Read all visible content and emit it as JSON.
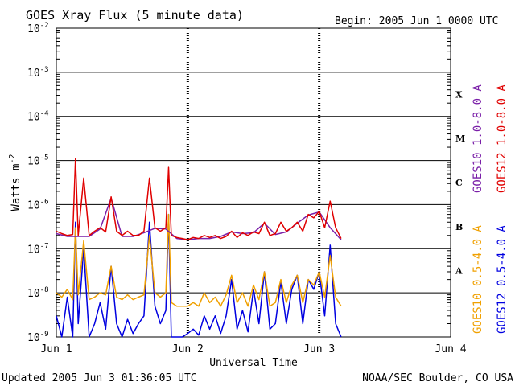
{
  "header": {
    "title": "GOES Xray Flux (5 minute data)",
    "begin": "Begin:  2005 Jun 1 0000 UTC"
  },
  "footer": {
    "updated": "Updated 2005 Jun  3 01:36:05 UTC",
    "source": "NOAA/SEC Boulder, CO USA"
  },
  "chart_data": {
    "type": "line",
    "title": "GOES Xray Flux (5 minute data)",
    "xlabel": "Universal Time",
    "ylabel": "Watts m",
    "ylabel_superscript": "-2",
    "y_scale": "log",
    "ylim": [
      1e-09,
      0.01
    ],
    "xlim": [
      "2005-06-01",
      "2005-06-04"
    ],
    "x_ticks": [
      "Jun 1",
      "Jun 2",
      "Jun 3",
      "Jun 4"
    ],
    "y_ticks": [
      {
        "base": "10",
        "exp": "-2"
      },
      {
        "base": "10",
        "exp": "-3"
      },
      {
        "base": "10",
        "exp": "-4"
      },
      {
        "base": "10",
        "exp": "-5"
      },
      {
        "base": "10",
        "exp": "-6"
      },
      {
        "base": "10",
        "exp": "-7"
      },
      {
        "base": "10",
        "exp": "-8"
      },
      {
        "base": "10",
        "exp": "-9"
      }
    ],
    "flare_classes": [
      {
        "label": "X",
        "flux": 0.0001
      },
      {
        "label": "M",
        "flux": 1e-05
      },
      {
        "label": "C",
        "flux": 1e-06
      },
      {
        "label": "B",
        "flux": 1e-07
      },
      {
        "label": "A",
        "flux": 1e-08
      }
    ],
    "grid": true,
    "legend": [
      {
        "name": "GOES10 1.0-8.0 A",
        "color": "#7a1fa8"
      },
      {
        "name": "GOES12 1.0-8.0 A",
        "color": "#e00000"
      },
      {
        "name": "GOES10 0.5-4.0 A",
        "color": "#f0a000"
      },
      {
        "name": "GOES12 0.5-4.0 A",
        "color": "#0000e0"
      }
    ],
    "series": [
      {
        "name": "GOES12 1.0-8.0 A",
        "color": "#e00000",
        "x_hours": [
          0,
          1,
          2,
          3,
          3.5,
          4,
          5,
          6,
          7,
          8,
          9,
          10,
          11,
          12,
          13,
          14,
          15,
          16,
          17,
          18,
          19,
          20,
          20.5,
          21,
          22,
          23,
          24,
          25,
          26,
          27,
          28,
          29,
          30,
          31,
          32,
          33,
          34,
          35,
          36,
          37,
          38,
          39,
          40,
          41,
          42,
          43,
          44,
          45,
          46,
          47,
          48,
          49,
          50,
          51,
          52
        ],
        "values": [
          2.5e-07,
          2.2e-07,
          2e-07,
          2.1e-07,
          1.1e-05,
          2e-07,
          4e-06,
          2e-07,
          2.5e-07,
          3e-07,
          2.4e-07,
          1.5e-06,
          2.5e-07,
          2e-07,
          2.5e-07,
          2e-07,
          2e-07,
          2.5e-07,
          4e-06,
          3e-07,
          2.5e-07,
          3e-07,
          7e-06,
          2e-07,
          1.8e-07,
          1.7e-07,
          1.6e-07,
          1.8e-07,
          1.7e-07,
          2e-07,
          1.8e-07,
          2e-07,
          1.7e-07,
          1.9e-07,
          2.5e-07,
          1.8e-07,
          2.3e-07,
          2e-07,
          2.4e-07,
          2.2e-07,
          4e-07,
          2e-07,
          2.2e-07,
          4e-07,
          2.5e-07,
          3e-07,
          4e-07,
          2.5e-07,
          6e-07,
          5e-07,
          7e-07,
          3e-07,
          1.2e-06,
          3e-07,
          1.7e-07
        ]
      },
      {
        "name": "GOES10 1.0-8.0 A",
        "color": "#7a1fa8",
        "x_hours": [
          0,
          2,
          4,
          6,
          8,
          10,
          12,
          14,
          16,
          18,
          20,
          22,
          24,
          26,
          28,
          30,
          32,
          34,
          36,
          38,
          40,
          42,
          44,
          46,
          48,
          50,
          52
        ],
        "values": [
          2.2e-07,
          1.9e-07,
          1.9e-07,
          1.9e-07,
          2.8e-07,
          1.4e-06,
          1.9e-07,
          1.9e-07,
          2.3e-07,
          2.9e-07,
          2.8e-07,
          1.7e-07,
          1.6e-07,
          1.7e-07,
          1.7e-07,
          1.9e-07,
          2.4e-07,
          2.2e-07,
          2.3e-07,
          3.8e-07,
          2.1e-07,
          2.4e-07,
          3.8e-07,
          5.8e-07,
          6.8e-07,
          3e-07,
          1.6e-07
        ]
      },
      {
        "name": "GOES10 0.5-4.0 A",
        "color": "#f0a000",
        "x_hours": [
          0,
          1,
          2,
          3,
          3.5,
          4,
          5,
          6,
          7,
          8,
          9,
          10,
          11,
          12,
          13,
          14,
          15,
          16,
          17,
          18,
          19,
          20,
          20.5,
          21,
          22,
          23,
          24,
          25,
          26,
          27,
          28,
          29,
          30,
          31,
          32,
          33,
          34,
          35,
          36,
          37,
          38,
          39,
          40,
          41,
          42,
          43,
          44,
          45,
          46,
          47,
          48,
          49,
          50,
          51,
          52
        ],
        "values": [
          1e-08,
          8e-09,
          1.2e-08,
          7e-09,
          3e-07,
          9e-09,
          1.5e-07,
          7e-09,
          8e-09,
          1e-08,
          9e-09,
          4e-08,
          8e-09,
          7e-09,
          9e-09,
          7e-09,
          8e-09,
          9e-09,
          2e-07,
          1e-08,
          8e-09,
          1e-08,
          6e-07,
          6e-09,
          5e-09,
          5e-09,
          5e-09,
          6e-09,
          5e-09,
          1e-08,
          6e-09,
          8e-09,
          5e-09,
          9e-09,
          2.5e-08,
          6e-09,
          1e-08,
          5e-09,
          1.5e-08,
          7e-09,
          3e-08,
          5e-09,
          6e-09,
          2e-08,
          6e-09,
          1.5e-08,
          2.5e-08,
          6e-09,
          2e-08,
          1.5e-08,
          3e-08,
          8e-09,
          7e-08,
          8e-09,
          5e-09
        ]
      },
      {
        "name": "GOES12 0.5-4.0 A",
        "color": "#0000e0",
        "x_hours": [
          0,
          1,
          2,
          3,
          3.5,
          4,
          5,
          6,
          7,
          8,
          9,
          10,
          11,
          12,
          13,
          14,
          15,
          16,
          17,
          18,
          19,
          20,
          20.5,
          21,
          22,
          23,
          24,
          25,
          26,
          27,
          28,
          29,
          30,
          31,
          32,
          33,
          34,
          35,
          36,
          37,
          38,
          39,
          40,
          41,
          42,
          43,
          44,
          45,
          46,
          47,
          48,
          49,
          50,
          51,
          52
        ],
        "values": [
          3e-09,
          1e-09,
          8e-09,
          1e-09,
          4e-07,
          2e-09,
          1e-07,
          1e-09,
          2e-09,
          6e-09,
          1.5e-09,
          4e-08,
          2e-09,
          1e-09,
          2.5e-09,
          1.2e-09,
          2e-09,
          3e-09,
          4e-07,
          5e-09,
          2e-09,
          4e-09,
          6e-07,
          1e-09,
          1e-09,
          1e-09,
          1.2e-09,
          1.5e-09,
          1.1e-09,
          3e-09,
          1.5e-09,
          3e-09,
          1.2e-09,
          3e-09,
          2e-08,
          1.5e-09,
          4e-09,
          1.3e-09,
          1.2e-08,
          2e-09,
          3e-08,
          1.5e-09,
          2e-09,
          1.8e-08,
          2e-09,
          1.2e-08,
          2.5e-08,
          2e-09,
          2e-08,
          1.2e-08,
          3e-08,
          3e-09,
          1.2e-07,
          2e-09,
          1e-09
        ]
      }
    ]
  }
}
